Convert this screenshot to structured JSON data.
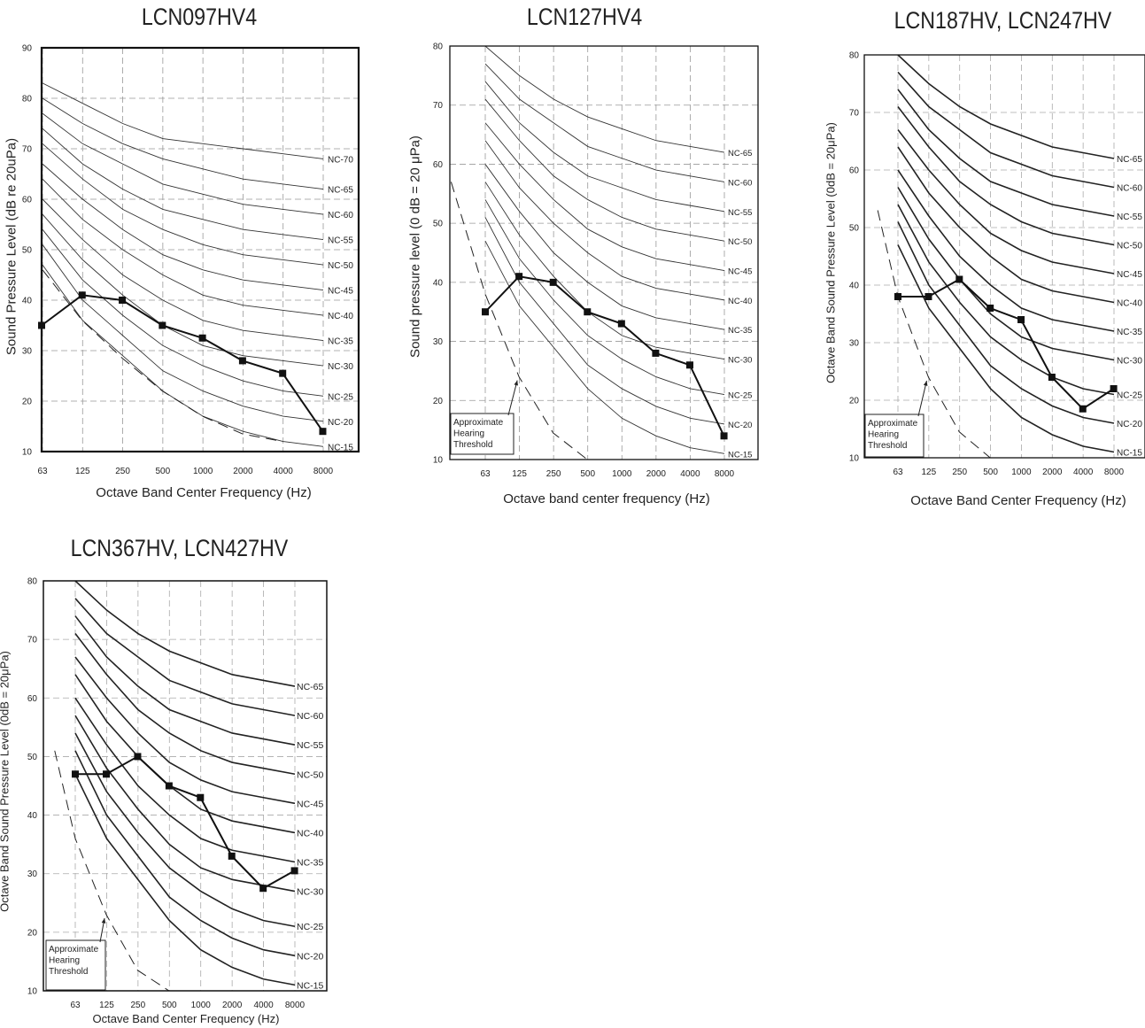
{
  "chart_data": [
    {
      "type": "line",
      "title": "LCN097HV4",
      "xlabel": "Octave Band Center Frequency (Hz)",
      "ylabel": "Sound Pressure Level (dB re 20uPa)",
      "x_ticks": [
        "63",
        "125",
        "250",
        "500",
        "1000",
        "2000",
        "4000",
        "8000"
      ],
      "y_ticks": [
        10,
        20,
        30,
        40,
        50,
        60,
        70,
        80,
        90
      ],
      "ylim": [
        10,
        90
      ],
      "grid": true,
      "nc_curves": [
        {
          "name": "NC-70",
          "values": [
            83,
            79,
            75,
            72,
            71,
            70,
            69,
            68
          ]
        },
        {
          "name": "NC-65",
          "values": [
            80,
            75,
            71,
            68,
            66,
            64,
            63,
            62
          ]
        },
        {
          "name": "NC-60",
          "values": [
            77,
            71,
            67,
            63,
            61,
            59,
            58,
            57
          ]
        },
        {
          "name": "NC-55",
          "values": [
            74,
            67,
            62,
            58,
            56,
            54,
            53,
            52
          ]
        },
        {
          "name": "NC-50",
          "values": [
            71,
            64,
            58,
            54,
            51,
            49,
            48,
            47
          ]
        },
        {
          "name": "NC-45",
          "values": [
            67,
            60,
            54,
            49,
            46,
            44,
            43,
            42
          ]
        },
        {
          "name": "NC-40",
          "values": [
            64,
            56,
            50,
            45,
            41,
            39,
            38,
            37
          ]
        },
        {
          "name": "NC-35",
          "values": [
            60,
            52,
            45,
            40,
            36,
            34,
            33,
            32
          ]
        },
        {
          "name": "NC-30",
          "values": [
            57,
            48,
            41,
            35,
            31,
            29,
            28,
            27
          ]
        },
        {
          "name": "NC-25",
          "values": [
            54,
            44,
            37,
            31,
            27,
            24,
            22,
            21
          ]
        },
        {
          "name": "NC-20",
          "values": [
            51,
            40,
            33,
            26,
            22,
            19,
            17,
            16
          ]
        },
        {
          "name": "NC-15",
          "values": [
            47,
            36,
            29,
            22,
            17,
            14,
            12,
            11
          ]
        }
      ],
      "unit_series": {
        "x": [
          62,
          125,
          250,
          500,
          1000,
          2000,
          4000,
          8000
        ],
        "values": [
          35,
          41,
          40,
          35,
          32.5,
          28,
          25.5,
          14
        ]
      },
      "threshold": {
        "x": [
          63,
          125,
          250,
          500,
          1000,
          2000,
          4000
        ],
        "values": [
          46,
          36,
          28.5,
          22,
          17,
          13.5,
          12
        ]
      },
      "threshold_label": ""
    },
    {
      "type": "line",
      "title": "LCN127HV4",
      "xlabel": "Octave band center frequency (Hz)",
      "ylabel": "Sound pressure level (0 dB = 20 μPa)",
      "x_ticks": [
        "63",
        "125",
        "250",
        "500",
        "1000",
        "2000",
        "4000",
        "8000"
      ],
      "y_ticks": [
        10,
        20,
        30,
        40,
        50,
        60,
        70,
        80
      ],
      "ylim": [
        10,
        80
      ],
      "grid": true,
      "nc_curves": [
        {
          "name": "NC-65",
          "values": [
            80,
            75,
            71,
            68,
            66,
            64,
            63,
            62
          ]
        },
        {
          "name": "NC-60",
          "values": [
            77,
            71,
            67,
            63,
            61,
            59,
            58,
            57
          ]
        },
        {
          "name": "NC-55",
          "values": [
            74,
            67,
            62,
            58,
            56,
            54,
            53,
            52
          ]
        },
        {
          "name": "NC-50",
          "values": [
            71,
            64,
            58,
            54,
            51,
            49,
            48,
            47
          ]
        },
        {
          "name": "NC-45",
          "values": [
            67,
            60,
            54,
            49,
            46,
            44,
            43,
            42
          ]
        },
        {
          "name": "NC-40",
          "values": [
            64,
            56,
            50,
            45,
            41,
            39,
            38,
            37
          ]
        },
        {
          "name": "NC-35",
          "values": [
            60,
            52,
            45,
            40,
            36,
            34,
            33,
            32
          ]
        },
        {
          "name": "NC-30",
          "values": [
            57,
            48,
            41,
            35,
            31,
            29,
            28,
            27
          ]
        },
        {
          "name": "NC-25",
          "values": [
            54,
            44,
            37,
            31,
            27,
            24,
            22,
            21
          ]
        },
        {
          "name": "NC-20",
          "values": [
            51,
            40,
            33,
            26,
            22,
            19,
            17,
            16
          ]
        },
        {
          "name": "NC-15",
          "values": [
            47,
            36,
            29,
            22,
            17,
            14,
            12,
            11
          ]
        }
      ],
      "unit_series": {
        "x": [
          63,
          125,
          250,
          500,
          1000,
          2000,
          4000,
          8000
        ],
        "values": [
          35,
          41,
          40,
          35,
          33,
          28,
          26,
          14
        ]
      },
      "threshold": {
        "x": [
          31.5,
          63,
          125,
          250,
          500
        ],
        "values": [
          57,
          38,
          24,
          14.5,
          10
        ]
      },
      "threshold_label": "Approximate\nHearing\nThreshold"
    },
    {
      "type": "line",
      "title": "LCN187HV, LCN247HV",
      "xlabel": "Octave Band Center Frequency (Hz)",
      "ylabel": "Octave Band Sound Pressure Level (0dB = 20μPa)",
      "x_ticks": [
        "63",
        "125",
        "250",
        "500",
        "1000",
        "2000",
        "4000",
        "8000"
      ],
      "y_ticks": [
        10,
        20,
        30,
        40,
        50,
        60,
        70,
        80
      ],
      "ylim": [
        10,
        80
      ],
      "grid": true,
      "nc_curves": [
        {
          "name": "NC-65",
          "values": [
            80,
            75,
            71,
            68,
            66,
            64,
            63,
            62
          ]
        },
        {
          "name": "NC-60",
          "values": [
            77,
            71,
            67,
            63,
            61,
            59,
            58,
            57
          ]
        },
        {
          "name": "NC-55",
          "values": [
            74,
            67,
            62,
            58,
            56,
            54,
            53,
            52
          ]
        },
        {
          "name": "NC-50",
          "values": [
            71,
            64,
            58,
            54,
            51,
            49,
            48,
            47
          ]
        },
        {
          "name": "NC-45",
          "values": [
            67,
            60,
            54,
            49,
            46,
            44,
            43,
            42
          ]
        },
        {
          "name": "NC-40",
          "values": [
            64,
            56,
            50,
            45,
            41,
            39,
            38,
            37
          ]
        },
        {
          "name": "NC-35",
          "values": [
            60,
            52,
            45,
            40,
            36,
            34,
            33,
            32
          ]
        },
        {
          "name": "NC-30",
          "values": [
            57,
            48,
            41,
            35,
            31,
            29,
            28,
            27
          ]
        },
        {
          "name": "NC-25",
          "values": [
            54,
            44,
            37,
            31,
            27,
            24,
            22,
            21
          ]
        },
        {
          "name": "NC-20",
          "values": [
            51,
            40,
            33,
            26,
            22,
            19,
            17,
            16
          ]
        },
        {
          "name": "NC-15",
          "values": [
            47,
            36,
            29,
            22,
            17,
            14,
            12,
            11
          ]
        }
      ],
      "unit_series": {
        "x": [
          63,
          125,
          250,
          500,
          1000,
          2000,
          4000,
          8000
        ],
        "values": [
          38,
          38,
          41,
          36,
          34,
          24,
          18.5,
          22
        ]
      },
      "threshold": {
        "x": [
          40,
          63,
          125,
          250,
          500
        ],
        "values": [
          53,
          38,
          24,
          14.5,
          10
        ]
      },
      "threshold_label": "Approximate\nHearing\nThreshold"
    },
    {
      "type": "line",
      "title": "LCN367HV, LCN427HV",
      "xlabel": "Octave Band Center Frequency (Hz)",
      "ylabel": "Octave Band Sound Pressure Level (0dB = 20μPa)",
      "x_ticks": [
        "63",
        "125",
        "250",
        "500",
        "1000",
        "2000",
        "4000",
        "8000"
      ],
      "y_ticks": [
        10,
        20,
        30,
        40,
        50,
        60,
        70,
        80
      ],
      "ylim": [
        10,
        80
      ],
      "grid": true,
      "nc_curves": [
        {
          "name": "NC-65",
          "values": [
            80,
            75,
            71,
            68,
            66,
            64,
            63,
            62
          ]
        },
        {
          "name": "NC-60",
          "values": [
            77,
            71,
            67,
            63,
            61,
            59,
            58,
            57
          ]
        },
        {
          "name": "NC-55",
          "values": [
            74,
            67,
            62,
            58,
            56,
            54,
            53,
            52
          ]
        },
        {
          "name": "NC-50",
          "values": [
            71,
            64,
            58,
            54,
            51,
            49,
            48,
            47
          ]
        },
        {
          "name": "NC-45",
          "values": [
            67,
            60,
            54,
            49,
            46,
            44,
            43,
            42
          ]
        },
        {
          "name": "NC-40",
          "values": [
            64,
            56,
            50,
            45,
            41,
            39,
            38,
            37
          ]
        },
        {
          "name": "NC-35",
          "values": [
            60,
            52,
            45,
            40,
            36,
            34,
            33,
            32
          ]
        },
        {
          "name": "NC-30",
          "values": [
            57,
            48,
            41,
            35,
            31,
            29,
            28,
            27
          ]
        },
        {
          "name": "NC-25",
          "values": [
            54,
            44,
            37,
            31,
            27,
            24,
            22,
            21
          ]
        },
        {
          "name": "NC-20",
          "values": [
            51,
            40,
            33,
            26,
            22,
            19,
            17,
            16
          ]
        },
        {
          "name": "NC-15",
          "values": [
            47,
            36,
            29,
            22,
            17,
            14,
            12,
            11
          ]
        }
      ],
      "unit_series": {
        "x": [
          63,
          125,
          250,
          500,
          1000,
          2000,
          4000,
          8000
        ],
        "values": [
          47,
          47,
          50,
          45,
          43,
          33,
          27.5,
          30.5
        ]
      },
      "threshold": {
        "x": [
          40,
          63,
          125,
          250,
          500
        ],
        "values": [
          51,
          36,
          23,
          13.5,
          10
        ]
      },
      "threshold_label": "Approximate\nHearing\nThreshold"
    }
  ]
}
